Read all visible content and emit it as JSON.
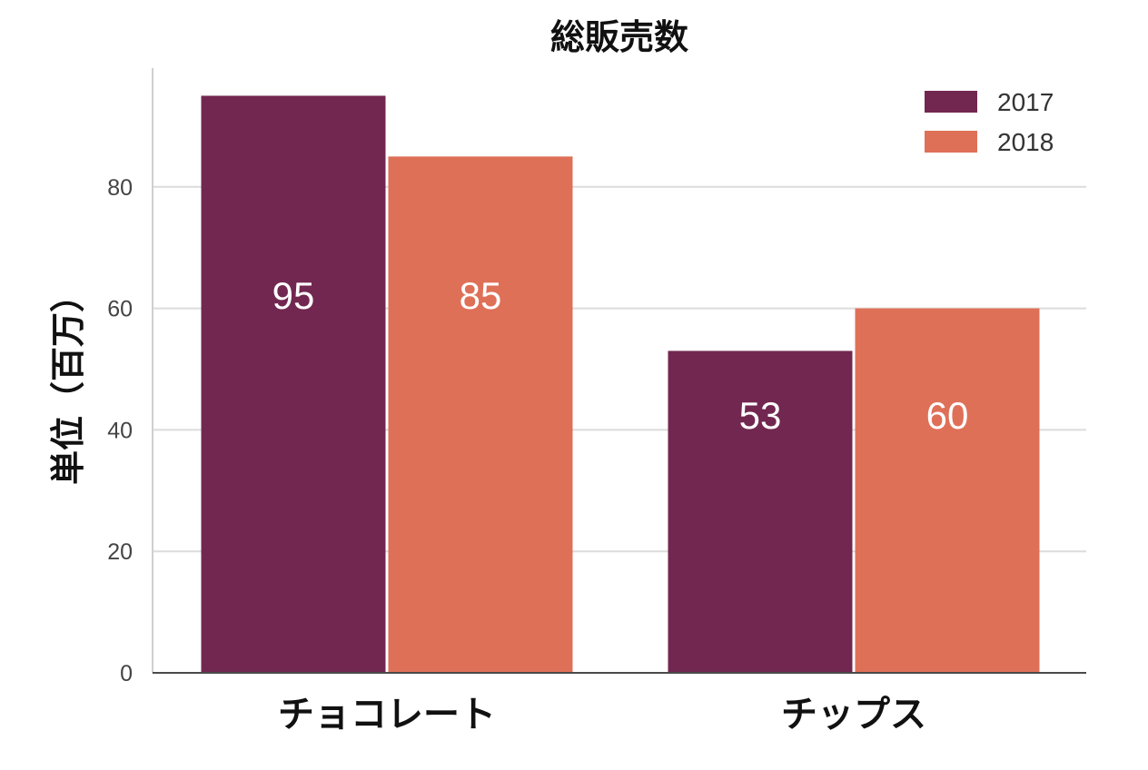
{
  "chart_data": {
    "type": "bar",
    "title": "総販売数",
    "xlabel": "",
    "ylabel": "単位（百万）",
    "categories": [
      "チョコレート",
      "チップス"
    ],
    "series": [
      {
        "name": "2017",
        "values": [
          95,
          53
        ],
        "color": "#722750"
      },
      {
        "name": "2018",
        "values": [
          85,
          60
        ],
        "color": "#df7058"
      }
    ],
    "ylim": [
      0,
      100
    ],
    "yticks": [
      0,
      20,
      40,
      60,
      80
    ],
    "ytick_labels": [
      "0",
      "20",
      "40",
      "60",
      "80"
    ],
    "bar_labels": [
      [
        "95",
        "53"
      ],
      [
        "85",
        "60"
      ]
    ],
    "grid": true,
    "legend_position": "top-right"
  }
}
